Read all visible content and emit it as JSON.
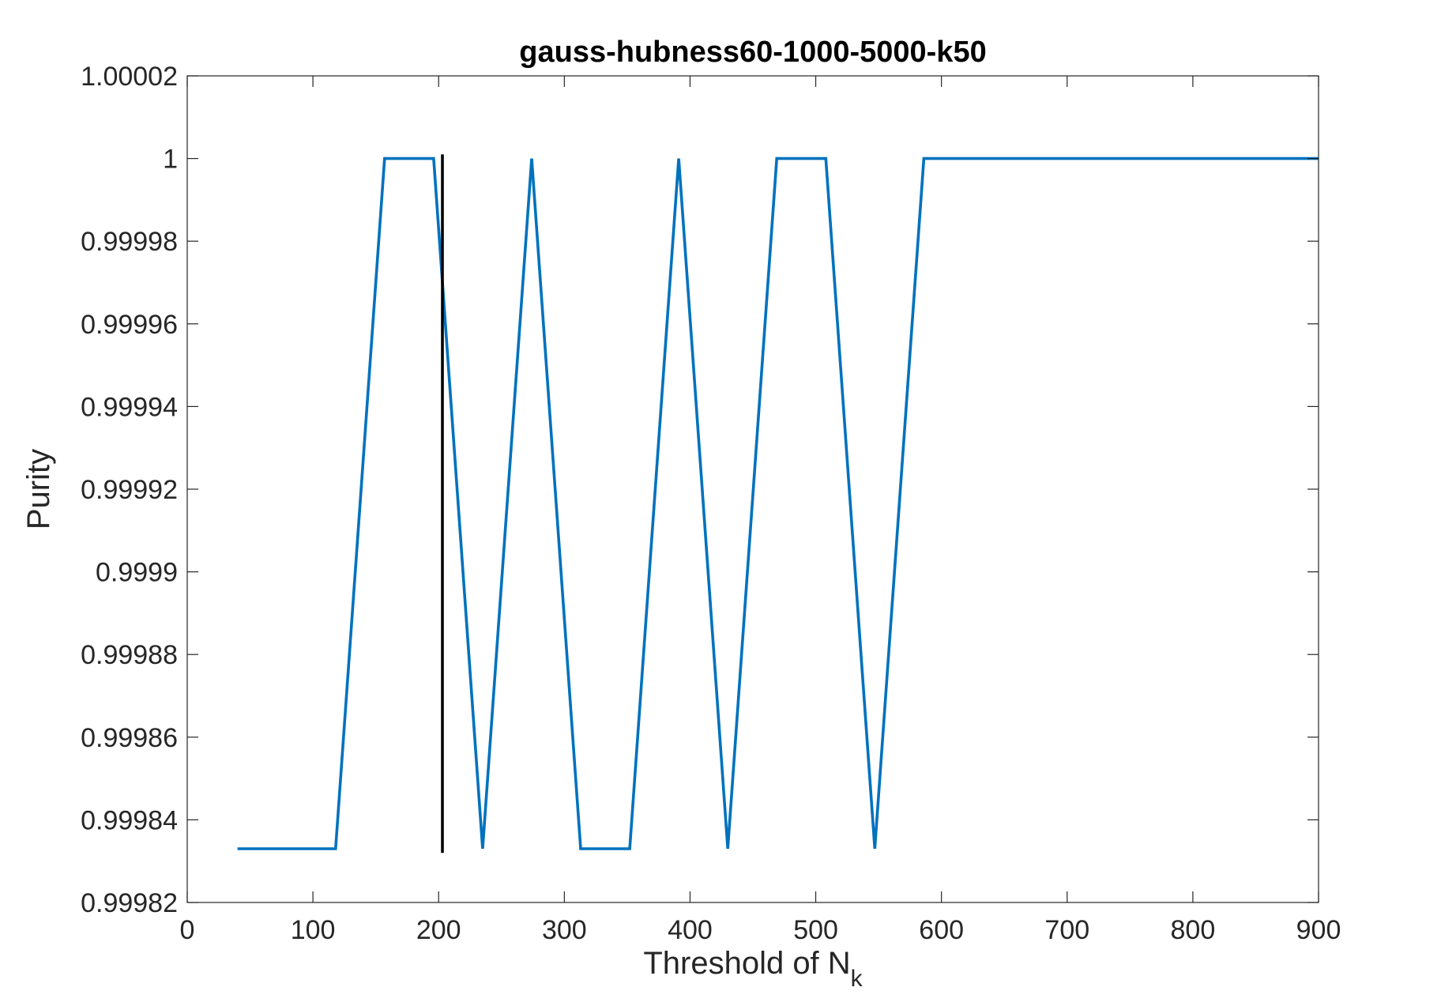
{
  "chart_data": {
    "type": "line",
    "title": "gauss-hubness60-1000-5000-k50",
    "xlabel": "Threshold of N",
    "xlabel_subscript": "k",
    "ylabel": "Purity",
    "xlim": [
      0,
      900
    ],
    "ylim": [
      0.99982,
      1.00002
    ],
    "grid": false,
    "x_ticks": [
      0,
      100,
      200,
      300,
      400,
      500,
      600,
      700,
      800,
      900
    ],
    "x_tick_labels": [
      "0",
      "100",
      "200",
      "300",
      "400",
      "500",
      "600",
      "700",
      "800",
      "900"
    ],
    "y_ticks": [
      0.99982,
      0.99984,
      0.99986,
      0.99988,
      0.9999,
      0.99992,
      0.99994,
      0.99996,
      0.99998,
      1,
      1.00002
    ],
    "y_tick_labels": [
      "0.99982",
      "0.99984",
      "0.99986",
      "0.99988",
      "0.9999",
      "0.99992",
      "0.99994",
      "0.99996",
      "0.99998",
      "1",
      "1.00002"
    ],
    "series": [
      {
        "color": "#0072BD",
        "x": [
          40,
          118,
          157,
          196,
          235,
          274,
          313,
          352,
          391,
          430,
          469,
          508,
          547,
          586,
          900
        ],
        "y": [
          0.999833,
          0.999833,
          1,
          1,
          0.999833,
          1,
          0.999833,
          0.999833,
          1,
          0.999833,
          1,
          1,
          0.999833,
          1,
          1
        ]
      }
    ],
    "reference_lines": [
      {
        "orientation": "vertical",
        "x": 203,
        "y_from": 0.999832,
        "y_to": 1.000001,
        "color": "#000000"
      }
    ]
  }
}
